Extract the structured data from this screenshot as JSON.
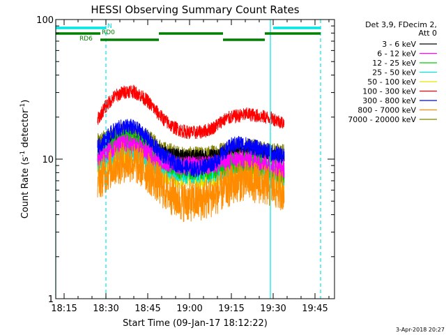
{
  "chart_data": {
    "type": "line",
    "title": "HESSI Observing Summary Count Rates",
    "xlabel": "Start Time (09-Jan-17 18:12:22)",
    "ylabel_main": "Count Rate (s",
    "ylabel_sup1": "-1",
    "ylabel_mid": " detector",
    "ylabel_sup2": "-1",
    "ylabel_end": ")",
    "y_scale": "log",
    "xlim": [
      "18:12",
      "19:52"
    ],
    "ylim": [
      1,
      100
    ],
    "x_ticks": [
      "18:15",
      "18:30",
      "18:45",
      "19:00",
      "19:15",
      "19:30",
      "19:45"
    ],
    "y_ticks": [
      "1",
      "10",
      "100"
    ],
    "legend_title": [
      "Det 3,9, FDecim 2,",
      "Att 0"
    ],
    "legend_placement": "right",
    "timestamp": "3-Apr-2018 20:27",
    "data_window": [
      "18:27",
      "19:34"
    ],
    "series": [
      {
        "name": "3 - 6 keV",
        "color": "#000000",
        "x": [
          "18:27",
          "18:32",
          "18:37",
          "18:42",
          "18:47",
          "18:52",
          "18:57",
          "19:02",
          "19:07",
          "19:12",
          "19:17",
          "19:22",
          "19:27",
          "19:30",
          "19:34"
        ],
        "y": [
          11,
          13,
          14,
          13,
          12,
          11,
          10.5,
          10.5,
          10.5,
          11,
          11.5,
          11.5,
          11,
          10.5,
          10
        ]
      },
      {
        "name": "6 - 12 keV",
        "color": "#ff00ff",
        "x": [
          "18:27",
          "18:32",
          "18:37",
          "18:42",
          "18:47",
          "18:52",
          "18:57",
          "19:02",
          "19:07",
          "19:12",
          "19:17",
          "19:22",
          "19:27",
          "19:30",
          "19:34"
        ],
        "y": [
          10,
          12,
          13,
          12,
          10.5,
          9.5,
          9,
          9,
          9,
          9.5,
          10,
          10,
          9.5,
          9,
          8.5
        ]
      },
      {
        "name": "12 - 25 keV",
        "color": "#00cc00",
        "x": [
          "18:27",
          "18:32",
          "18:37",
          "18:42",
          "18:47",
          "18:52",
          "18:57",
          "19:02",
          "19:07",
          "19:12",
          "19:17",
          "19:22",
          "19:27",
          "19:30",
          "19:34"
        ],
        "y": [
          10,
          13,
          14,
          13,
          11,
          9.5,
          8.5,
          8.5,
          8.5,
          9,
          9.5,
          9.5,
          9,
          8.5,
          8
        ]
      },
      {
        "name": "25 - 50 keV",
        "color": "#00e5e5",
        "x": [
          "18:27",
          "18:32",
          "18:37",
          "18:42",
          "18:47",
          "18:52",
          "18:57",
          "19:02",
          "19:07",
          "19:12",
          "19:17",
          "19:22",
          "19:27",
          "19:30",
          "19:34"
        ],
        "y": [
          9.5,
          11,
          12,
          11,
          9.5,
          8.5,
          8,
          8,
          8,
          8.5,
          9,
          9,
          8.5,
          8,
          7.5
        ]
      },
      {
        "name": "50 - 100 keV",
        "color": "#e5e500",
        "x": [
          "18:27",
          "18:32",
          "18:37",
          "18:42",
          "18:47",
          "18:52",
          "18:57",
          "19:02",
          "19:07",
          "19:12",
          "19:17",
          "19:22",
          "19:27",
          "19:30",
          "19:34"
        ],
        "y": [
          9,
          10,
          11,
          10,
          9,
          8,
          7.5,
          7.5,
          7.5,
          8,
          8.5,
          8.5,
          8,
          7.5,
          7
        ]
      },
      {
        "name": "100 - 300 keV",
        "color": "#ff0000",
        "x": [
          "18:27",
          "18:30",
          "18:33",
          "18:36",
          "18:39",
          "18:42",
          "18:45",
          "18:48",
          "18:51",
          "18:54",
          "18:57",
          "19:00",
          "19:03",
          "19:06",
          "19:09",
          "19:12",
          "19:15",
          "19:18",
          "19:21",
          "19:24",
          "19:27",
          "19:30",
          "19:34"
        ],
        "y": [
          19,
          24,
          28,
          30,
          31,
          29,
          26,
          22,
          19,
          17,
          16,
          15.5,
          15.5,
          16,
          17,
          19,
          20,
          20.5,
          21,
          20.5,
          20,
          19.5,
          18
        ]
      },
      {
        "name": "300 - 800 keV",
        "color": "#0000ff",
        "x": [
          "18:27",
          "18:30",
          "18:33",
          "18:36",
          "18:39",
          "18:42",
          "18:45",
          "18:48",
          "18:51",
          "18:54",
          "18:57",
          "19:00",
          "19:03",
          "19:06",
          "19:09",
          "19:12",
          "19:15",
          "19:18",
          "19:21",
          "19:24",
          "19:27",
          "19:30",
          "19:34"
        ],
        "y": [
          12,
          14,
          16,
          17,
          17,
          16,
          14,
          12,
          10.5,
          9.5,
          9,
          8.5,
          8.5,
          9,
          9.5,
          11,
          12.5,
          13,
          12.5,
          12,
          11.5,
          11,
          10.5
        ]
      },
      {
        "name": "800 - 7000 keV",
        "color": "#ff8c00",
        "x": [
          "18:27",
          "18:30",
          "18:33",
          "18:36",
          "18:39",
          "18:42",
          "18:45",
          "18:48",
          "18:51",
          "18:54",
          "18:57",
          "19:00",
          "19:03",
          "19:06",
          "19:09",
          "19:12",
          "19:15",
          "19:18",
          "19:21",
          "19:24",
          "19:27",
          "19:30",
          "19:34"
        ],
        "y": [
          7,
          8,
          9,
          9.5,
          9.5,
          9,
          8,
          7,
          6,
          5.5,
          5,
          5,
          5,
          5.2,
          5.5,
          6,
          6.5,
          7,
          7,
          6.8,
          6.5,
          6.2,
          6
        ]
      },
      {
        "name": "7000 - 20000 keV",
        "color": "#808000",
        "x": [
          "18:27",
          "18:30",
          "18:33",
          "18:36",
          "18:39",
          "18:42",
          "18:45",
          "18:48",
          "18:51",
          "18:54",
          "18:57",
          "19:00",
          "19:03",
          "19:06",
          "19:09",
          "19:12",
          "19:15",
          "19:18",
          "19:21",
          "19:24",
          "19:27",
          "19:30",
          "19:34"
        ],
        "y": [
          13,
          14,
          15,
          15.5,
          15.5,
          15,
          14,
          12.5,
          11.5,
          11,
          10.5,
          10.5,
          10.5,
          10.5,
          11,
          11.5,
          12,
          12,
          12,
          11.8,
          11.5,
          11.2,
          11
        ]
      }
    ],
    "vertical_lines": [
      {
        "t": "18:12",
        "style": "solid",
        "color": "#00e5e5"
      },
      {
        "t": "18:30",
        "style": "dashed",
        "color": "#00e5e5"
      },
      {
        "t": "19:29",
        "style": "solid",
        "color": "#00e5e5"
      },
      {
        "t": "19:47",
        "style": "dashed",
        "color": "#00e5e5"
      }
    ],
    "flag_bars": [
      {
        "label": "N",
        "color": "#00e5e5",
        "segments": [
          [
            "18:12",
            "18:30"
          ],
          [
            "19:30",
            "19:47"
          ]
        ],
        "row": 0
      },
      {
        "label": "RD0",
        "color": "#008000",
        "segments": [
          [
            "18:12",
            "18:28"
          ],
          [
            "18:49",
            "19:12"
          ],
          [
            "19:27",
            "19:47"
          ]
        ],
        "row": 1
      },
      {
        "label": "RD6",
        "color": "#008000",
        "segments": [
          [
            "18:28",
            "18:49"
          ],
          [
            "19:12",
            "19:27"
          ]
        ],
        "row": 2
      }
    ]
  }
}
